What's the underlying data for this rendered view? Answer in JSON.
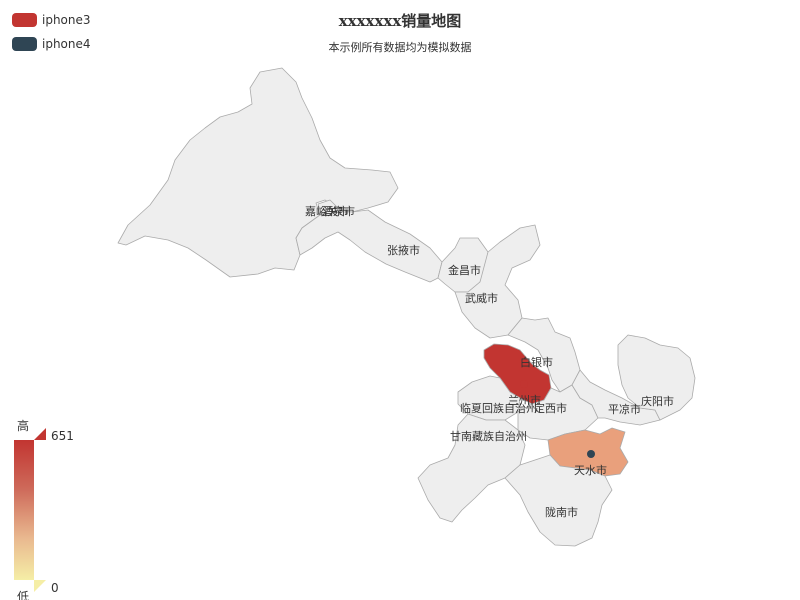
{
  "title": "xxxxxxx销量地图",
  "subtitle": "本示例所有数据均为模拟数据",
  "legend": [
    {
      "name": "iphone3",
      "color": "#c23531"
    },
    {
      "name": "iphone4",
      "color": "#2f4554"
    }
  ],
  "visual_map": {
    "max_value": "651",
    "min_value": "0",
    "high_text": "高",
    "low_text": "低",
    "colors": [
      "#c23531",
      "#e9a07c",
      "#f5eea6"
    ]
  },
  "map": {
    "default_fill": "#eeeeee",
    "regions": [
      {
        "name": "嘉峪关市",
        "fill": "#eeeeee"
      },
      {
        "name": "酒泉市",
        "fill": "#eeeeee"
      },
      {
        "name": "张掖市",
        "fill": "#eeeeee"
      },
      {
        "name": "金昌市",
        "fill": "#eeeeee"
      },
      {
        "name": "武威市",
        "fill": "#eeeeee"
      },
      {
        "name": "白银市",
        "fill": "#eeeeee"
      },
      {
        "name": "兰州市",
        "fill": "#c23531"
      },
      {
        "name": "临夏回族自治州",
        "fill": "#eeeeee"
      },
      {
        "name": "定西市",
        "fill": "#eeeeee"
      },
      {
        "name": "平凉市",
        "fill": "#eeeeee"
      },
      {
        "name": "庆阳市",
        "fill": "#eeeeee"
      },
      {
        "name": "甘南藏族自治州",
        "fill": "#eeeeee"
      },
      {
        "name": "天水市",
        "fill": "#e9a07c"
      },
      {
        "name": "陇南市",
        "fill": "#eeeeee"
      }
    ]
  }
}
